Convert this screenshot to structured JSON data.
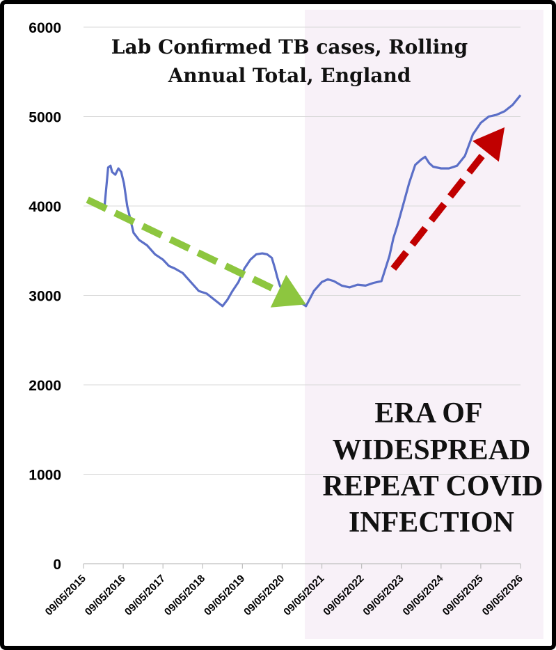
{
  "chart_data": {
    "type": "line",
    "title_lines": [
      "Lab Confirmed TB cases, Rolling",
      "Annual Total, England"
    ],
    "xlabel": "",
    "ylabel": "",
    "ylim": [
      0,
      6000
    ],
    "yticks": [
      0,
      1000,
      2000,
      3000,
      4000,
      5000,
      6000
    ],
    "xticks": [
      "09/05/2015",
      "09/05/2016",
      "09/05/2017",
      "09/05/2018",
      "09/05/2019",
      "09/05/2020",
      "09/05/2021",
      "09/05/2022",
      "09/05/2023",
      "09/05/2024",
      "09/05/2025",
      "09/05/2026"
    ],
    "grid": true,
    "line_color": "#5B6FC7",
    "shade_start": 5.57,
    "shade_color": "#F8F1F8",
    "series": [
      {
        "x": [
          0.53,
          0.62,
          0.68,
          0.72,
          0.8,
          0.88,
          0.95,
          1.02,
          1.1,
          1.18,
          1.26,
          1.4,
          1.6,
          1.8,
          2.0,
          2.15,
          2.3,
          2.5,
          2.7,
          2.9,
          3.1,
          3.3,
          3.5,
          3.62,
          3.75,
          3.9,
          4.05,
          4.2,
          4.35,
          4.5,
          4.62,
          4.74,
          4.82,
          4.88,
          4.95,
          5.05,
          5.2,
          5.4,
          5.6,
          5.8,
          6.0,
          6.15,
          6.3,
          6.5,
          6.7,
          6.9,
          7.1,
          7.3,
          7.5,
          7.7,
          7.8,
          7.9,
          8.05,
          8.2,
          8.35,
          8.5,
          8.6,
          8.7,
          8.8,
          9.0,
          9.2,
          9.4,
          9.6,
          9.8,
          10.0,
          10.2,
          10.4,
          10.6,
          10.8,
          11.0
        ],
        "y": [
          4000,
          4430,
          4450,
          4380,
          4350,
          4420,
          4380,
          4250,
          4000,
          3850,
          3700,
          3620,
          3560,
          3460,
          3400,
          3330,
          3300,
          3250,
          3150,
          3050,
          3020,
          2950,
          2880,
          2950,
          3050,
          3150,
          3300,
          3400,
          3460,
          3470,
          3460,
          3420,
          3300,
          3200,
          3100,
          3050,
          2980,
          2940,
          2880,
          3050,
          3150,
          3180,
          3160,
          3110,
          3090,
          3120,
          3110,
          3140,
          3160,
          3440,
          3640,
          3780,
          4020,
          4260,
          4460,
          4520,
          4550,
          4480,
          4440,
          4420,
          4420,
          4450,
          4560,
          4800,
          4930,
          5000,
          5020,
          5060,
          5130,
          5240
        ]
      }
    ],
    "annotations": [
      {
        "text": "",
        "type": "arrow",
        "color": "#8DC63F",
        "from": [
          0.1,
          4070
        ],
        "to": [
          5.6,
          2900
        ]
      },
      {
        "text": "",
        "type": "arrow",
        "color": "#C00000",
        "from": [
          7.8,
          3300
        ],
        "to": [
          10.6,
          4880
        ]
      },
      {
        "text_lines": [
          "ERA OF",
          "WIDESPREAD",
          "REPEAT COVID",
          "INFECTION"
        ],
        "type": "label"
      }
    ]
  }
}
